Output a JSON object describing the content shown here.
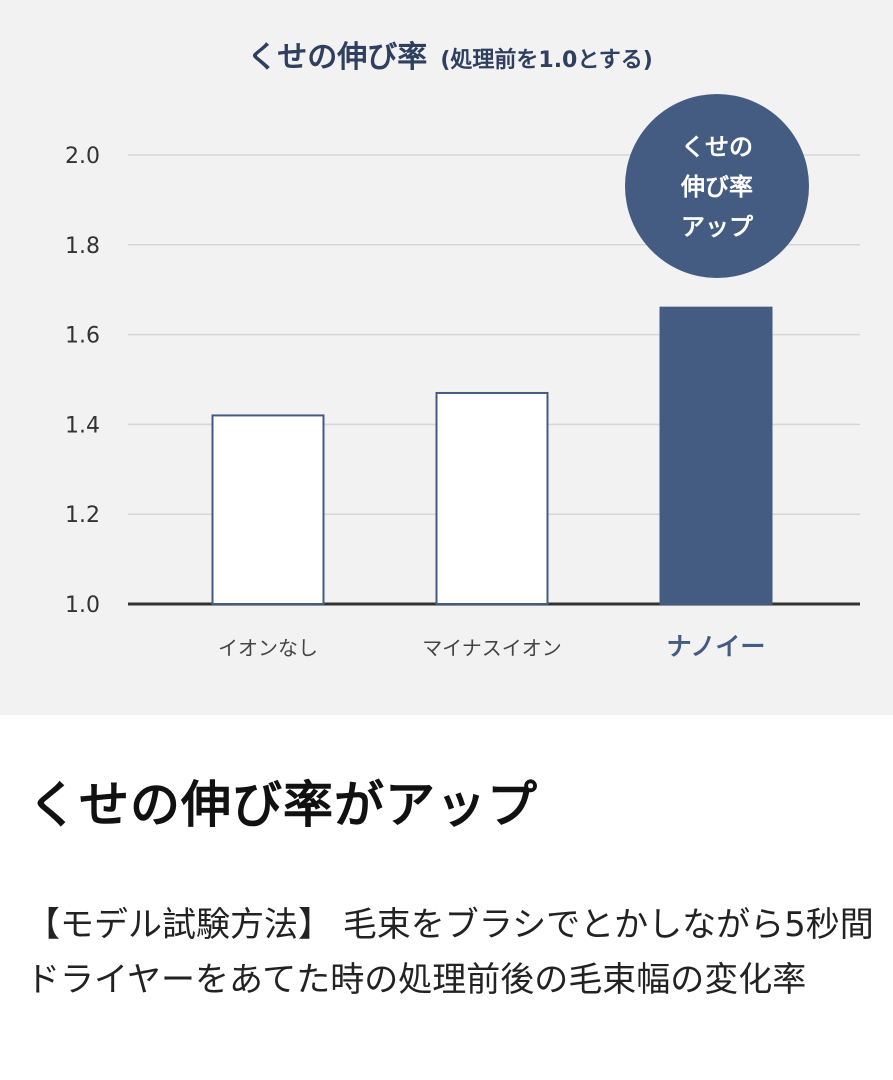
{
  "chart_data": {
    "type": "bar",
    "title": "くせの伸び率",
    "subtitle": "(処理前を1.0とする)",
    "categories": [
      "イオンなし",
      "マイナスイオン",
      "ナノイー"
    ],
    "values": [
      1.42,
      1.47,
      1.66
    ],
    "ylim": [
      1.0,
      2.0
    ],
    "yticks": [
      "1.0",
      "1.2",
      "1.4",
      "1.6",
      "1.8",
      "2.0"
    ],
    "grid": true,
    "highlight_index": 2,
    "annotation": [
      "くせの",
      "伸び率",
      "アップ"
    ],
    "colors": {
      "accent": "#445b82",
      "title": "#2f3f60",
      "background": "#f2f2f2",
      "grid": "#d6d6d6",
      "axis": "#333333"
    }
  },
  "heading": "くせの伸び率がアップ",
  "description": "【モデル試験方法】 毛束をブラシでとかしながら5秒間ドライヤーをあてた時の処理前後の毛束幅の変化率"
}
